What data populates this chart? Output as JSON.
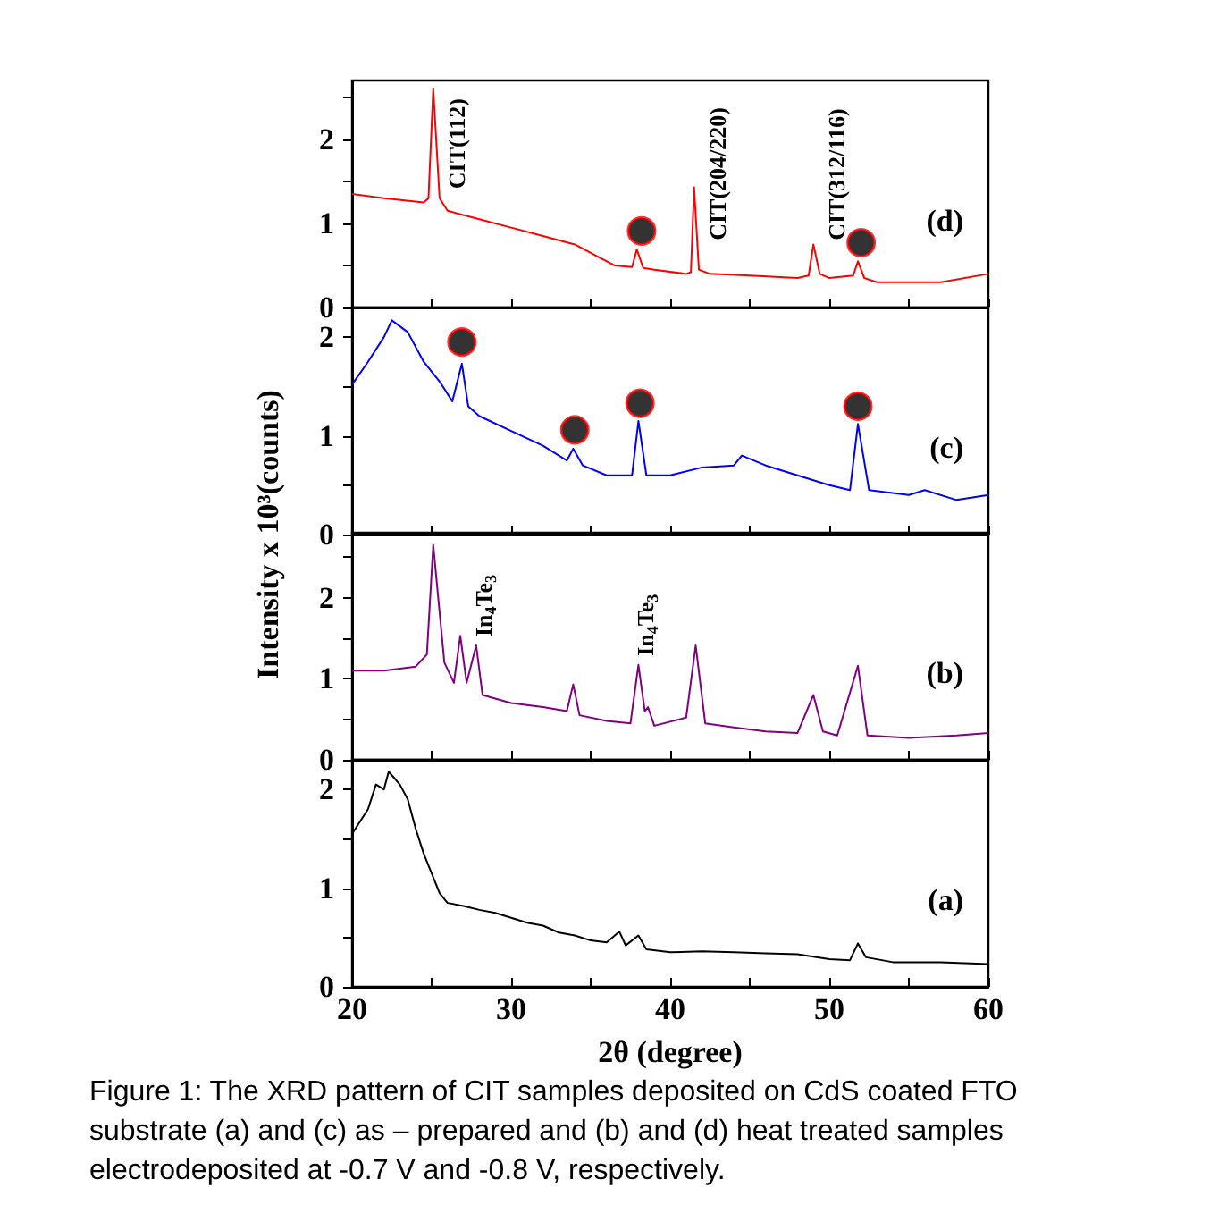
{
  "chart_data": [
    {
      "type": "line",
      "x": [
        20,
        22,
        24.5,
        24.8,
        25.1,
        25.5,
        26,
        28,
        30,
        32,
        34,
        35.5,
        36.5,
        37.6,
        37.9,
        38.3,
        39,
        41,
        41.3,
        41.5,
        41.8,
        42.5,
        45,
        48,
        48.7,
        49,
        49.4,
        50,
        51.5,
        51.8,
        52.2,
        53,
        57,
        60
      ],
      "series": [
        {
          "color": "#ff0000",
          "values": [
            1.35,
            1.3,
            1.25,
            1.3,
            2.6,
            1.3,
            1.15,
            1.05,
            0.95,
            0.85,
            0.75,
            0.6,
            0.5,
            0.48,
            0.69,
            0.47,
            0.45,
            0.4,
            0.42,
            1.43,
            0.45,
            0.4,
            0.38,
            0.35,
            0.38,
            0.75,
            0.4,
            0.35,
            0.38,
            0.55,
            0.35,
            0.3,
            0.3,
            0.4
          ]
        },
        {
          "type": "scatter",
          "marker": "circle",
          "color": "#000000",
          "x": [
            38.2,
            52.0
          ],
          "values": [
            0.91,
            0.77
          ]
        }
      ],
      "xlim": [
        20,
        60
      ],
      "xticks": [
        20,
        {
          "value": 25,
          "label": null
        },
        30,
        {
          "value": 35,
          "label": null
        },
        40,
        {
          "value": 45,
          "label": null
        },
        50,
        {
          "value": 55,
          "label": null
        },
        60
      ],
      "ylim": [
        0,
        2.7
      ],
      "yticks": [
        0,
        {
          "value": 0.5,
          "label": null
        },
        1,
        {
          "value": 1.5,
          "label": null
        },
        2,
        {
          "value": 2.5,
          "label": null
        }
      ],
      "tick_labels": "y",
      "annotations": [
        "(d)",
        {
          "text": "CIT(112)",
          "x": 25.1,
          "y": 2.6
        },
        {
          "text": "CIT(204/220)",
          "x": 41.5,
          "y": 1.43
        },
        {
          "text": "CIT(312/116)",
          "x": 49.0,
          "y": 0.75
        }
      ]
    },
    {
      "type": "line",
      "x": [
        20,
        21,
        22,
        22.5,
        23.5,
        24.5,
        25.5,
        26.3,
        26.9,
        27.3,
        28,
        30,
        32,
        33.5,
        33.9,
        34.5,
        36,
        37.6,
        38,
        38.5,
        40,
        42,
        44,
        44.5,
        46,
        48,
        50,
        51.3,
        51.8,
        52.5,
        55,
        56,
        58,
        60
      ],
      "series": [
        {
          "color": "#0000ff",
          "values": [
            1.52,
            1.75,
            2.0,
            2.17,
            2.05,
            1.75,
            1.55,
            1.35,
            1.73,
            1.3,
            1.2,
            1.05,
            0.9,
            0.75,
            0.87,
            0.7,
            0.6,
            0.6,
            1.15,
            0.6,
            0.6,
            0.68,
            0.7,
            0.8,
            0.7,
            0.6,
            0.5,
            0.45,
            1.12,
            0.45,
            0.4,
            0.45,
            0.35,
            0.4
          ]
        },
        {
          "type": "scatter",
          "marker": "circle",
          "color": "#000000",
          "x": [
            26.9,
            34.0,
            38.1,
            51.8
          ],
          "values": [
            1.95,
            1.06,
            1.33,
            1.3
          ]
        }
      ],
      "xlim": [
        20,
        60
      ],
      "xticks": [
        20,
        {
          "value": 25,
          "label": null
        },
        30,
        {
          "value": 35,
          "label": null
        },
        40,
        {
          "value": 45,
          "label": null
        },
        50,
        {
          "value": 55,
          "label": null
        },
        60
      ],
      "ylim": [
        0,
        2.3
      ],
      "yticks": [
        0,
        {
          "value": 0.5,
          "label": null
        },
        1,
        {
          "value": 1.5,
          "label": null
        },
        2
      ],
      "tick_labels": "y",
      "ylabel": "Intensity x 10³(counts)",
      "annotations": [
        "(c)"
      ]
    },
    {
      "type": "line",
      "x": [
        20,
        22,
        24,
        24.7,
        25.1,
        25.8,
        26.4,
        26.8,
        27.2,
        27.8,
        28.2,
        30,
        32,
        33.5,
        33.9,
        34.3,
        36,
        37.5,
        38,
        38.4,
        38.6,
        39,
        41,
        41.6,
        42.2,
        44,
        46,
        48,
        49,
        49.6,
        50.5,
        51.8,
        52.4,
        55,
        58,
        60
      ],
      "series": [
        {
          "color": "#800080",
          "values": [
            1.1,
            1.1,
            1.15,
            1.3,
            2.65,
            1.2,
            0.95,
            1.53,
            0.95,
            1.41,
            0.8,
            0.7,
            0.65,
            0.6,
            0.93,
            0.55,
            0.48,
            0.45,
            1.17,
            0.6,
            0.65,
            0.42,
            0.52,
            1.41,
            0.45,
            0.4,
            0.35,
            0.33,
            0.8,
            0.35,
            0.3,
            1.16,
            0.3,
            0.27,
            0.3,
            0.33
          ]
        }
      ],
      "xlim": [
        20,
        60
      ],
      "xticks": [
        20,
        {
          "value": 25,
          "label": null
        },
        30,
        {
          "value": 35,
          "label": null
        },
        40,
        {
          "value": 45,
          "label": null
        },
        50,
        {
          "value": 55,
          "label": null
        },
        60
      ],
      "ylim": [
        0,
        2.8
      ],
      "yticks": [
        0,
        {
          "value": 0.5,
          "label": null
        },
        1,
        {
          "value": 1.5,
          "label": null
        },
        2,
        {
          "value": 2.5,
          "label": null
        }
      ],
      "tick_labels": "y",
      "annotations": [
        "(b)",
        {
          "text": "In$_{4}$Te$_{3}$",
          "x": 27.8,
          "y": 1.41
        },
        {
          "text": "In$_{4}$Te$_{3}$",
          "x": 38,
          "y": 1.17
        }
      ]
    },
    {
      "type": "line",
      "x": [
        20,
        21,
        21.5,
        22,
        22.3,
        23,
        23.5,
        24,
        24.5,
        25,
        25.5,
        26,
        27,
        28,
        29,
        30,
        31,
        32,
        33,
        34,
        35,
        36,
        36.8,
        37.2,
        38,
        38.5,
        40,
        42,
        44,
        46,
        48,
        50,
        51.3,
        51.8,
        52.3,
        54,
        57,
        60
      ],
      "series": [
        {
          "color": "#000000",
          "values": [
            1.55,
            1.8,
            2.05,
            2.0,
            2.18,
            2.05,
            1.9,
            1.6,
            1.35,
            1.15,
            0.95,
            0.85,
            0.82,
            0.78,
            0.75,
            0.7,
            0.65,
            0.62,
            0.55,
            0.52,
            0.47,
            0.45,
            0.56,
            0.42,
            0.52,
            0.38,
            0.35,
            0.36,
            0.35,
            0.34,
            0.33,
            0.28,
            0.27,
            0.44,
            0.3,
            0.25,
            0.25,
            0.23
          ]
        }
      ],
      "xlim": [
        20,
        60
      ],
      "xticks": [
        20,
        {
          "value": 25,
          "label": null
        },
        30,
        {
          "value": 35,
          "label": null
        },
        40,
        {
          "value": 45,
          "label": null
        },
        50,
        {
          "value": 55,
          "label": null
        },
        60
      ],
      "ylim": [
        0,
        2.3
      ],
      "yticks": [
        0,
        {
          "value": 0.5,
          "label": null
        },
        1,
        {
          "value": 1.5,
          "label": null
        },
        2
      ],
      "xlabel": "2θ (degree)",
      "annotations": [
        "(a)",
        "Figure 1: The XRD pattern of CIT samples deposited on CdS coated FTO substrate (a) and (c) as – prepared and (b) and (d) heat treated samples electrodeposited at -0.7 V and -0.8 V, respectively."
      ]
    }
  ]
}
